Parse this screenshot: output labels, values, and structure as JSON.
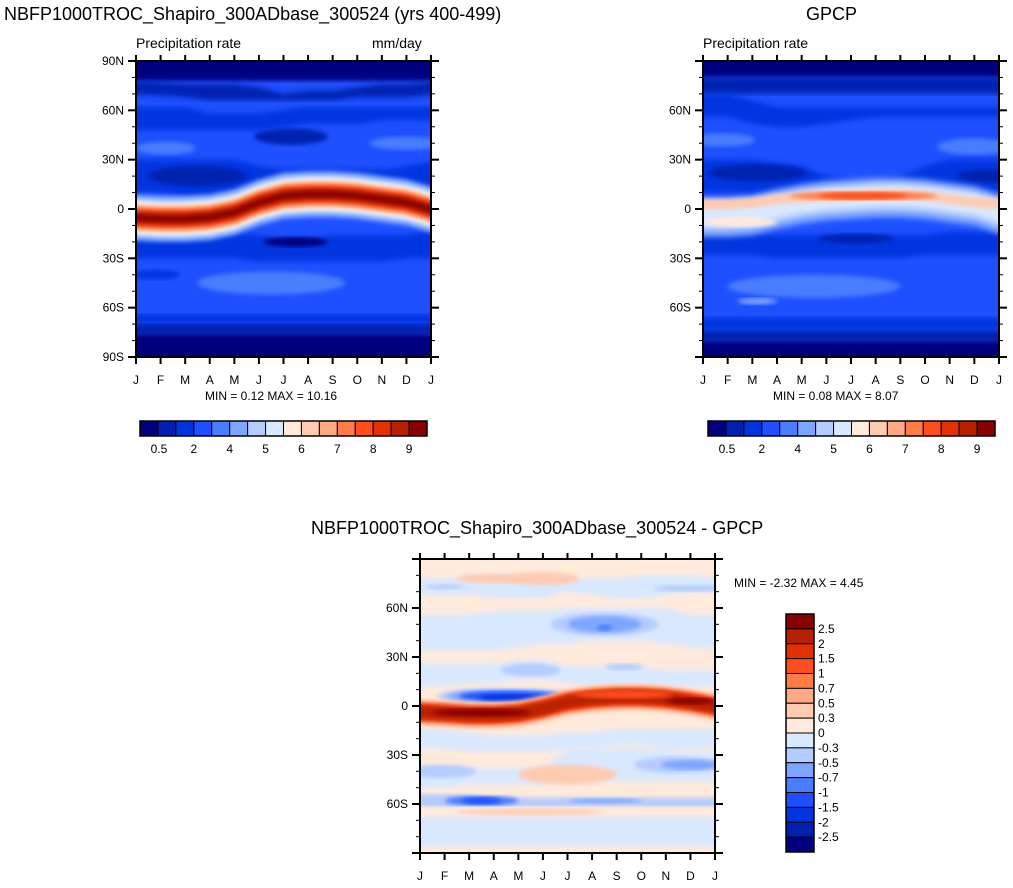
{
  "chart_data": [
    {
      "type": "heatmap",
      "id": "model",
      "title": "NBFP1000TROC_Shapiro_300ADbase_300524 (yrs 400-499)",
      "left_subtitle": "Precipitation rate",
      "right_subtitle": "mm/day",
      "xlabel": "",
      "ylabel": "",
      "x_tick_labels": [
        "J",
        "F",
        "M",
        "A",
        "M",
        "J",
        "J",
        "A",
        "S",
        "O",
        "N",
        "D",
        "J"
      ],
      "y_tick_labels": [
        "90N",
        "60N",
        "30N",
        "0",
        "30S",
        "60S",
        "90S"
      ],
      "y_tick_values": [
        90,
        60,
        30,
        0,
        -30,
        -60,
        -90
      ],
      "ylim": [
        -90,
        90
      ],
      "minmax_text": "MIN =   0.12 MAX =  10.16",
      "min": 0.12,
      "max": 10.16,
      "colorbar": {
        "orientation": "horizontal",
        "colors": [
          "#00007f",
          "#0020b0",
          "#0034e0",
          "#1e50ff",
          "#4a7dff",
          "#7ea5ff",
          "#b4ccff",
          "#d8e8ff",
          "#ffeadb",
          "#ffcbb0",
          "#ffaa85",
          "#ff7b48",
          "#ff4e1e",
          "#e23000",
          "#b72000",
          "#880000"
        ],
        "tick_labels": [
          "0.5",
          "2",
          "4",
          "5",
          "6",
          "7",
          "8",
          "9"
        ]
      },
      "features": {
        "itcz": "band of maximum precipitation near 5S in Jan-Apr shifting to ~10N in Jul-Oct",
        "itcz_path_lat": [
          -5,
          -6,
          -6,
          -5,
          -2,
          4,
          8,
          9,
          9,
          8,
          6,
          4,
          -2
        ]
      }
    },
    {
      "type": "heatmap",
      "id": "obs",
      "title": "GPCP",
      "left_subtitle": "Precipitation rate",
      "right_subtitle": "",
      "x_tick_labels": [
        "J",
        "F",
        "M",
        "A",
        "M",
        "J",
        "J",
        "A",
        "S",
        "O",
        "N",
        "D",
        "J"
      ],
      "y_tick_labels": [
        "60N",
        "30N",
        "0",
        "30S",
        "60S"
      ],
      "y_tick_values": [
        60,
        30,
        0,
        -30,
        -60
      ],
      "ylim": [
        -90,
        90
      ],
      "minmax_text": "MIN =   0.08 MAX =   8.07",
      "min": 0.08,
      "max": 8.07,
      "colorbar": {
        "orientation": "horizontal",
        "colors": [
          "#00007f",
          "#0020b0",
          "#0034e0",
          "#1e50ff",
          "#4a7dff",
          "#7ea5ff",
          "#b4ccff",
          "#d8e8ff",
          "#ffeadb",
          "#ffcbb0",
          "#ffaa85",
          "#ff7b48",
          "#ff4e1e",
          "#e23000",
          "#b72000",
          "#880000"
        ],
        "tick_labels": [
          "0.5",
          "2",
          "4",
          "5",
          "6",
          "7",
          "8",
          "9"
        ]
      },
      "features": {
        "itcz_path_lat": [
          -3,
          -3,
          -2,
          2,
          5,
          7,
          8,
          9,
          9,
          8,
          6,
          4,
          -3
        ]
      }
    },
    {
      "type": "heatmap",
      "id": "diff",
      "title": "NBFP1000TROC_Shapiro_300ADbase_300524 - GPCP",
      "x_tick_labels": [
        "J",
        "F",
        "M",
        "A",
        "M",
        "J",
        "J",
        "A",
        "S",
        "O",
        "N",
        "D",
        "J"
      ],
      "y_tick_labels": [
        "60N",
        "30N",
        "0",
        "30S",
        "60S"
      ],
      "y_tick_values": [
        60,
        30,
        0,
        -30,
        -60
      ],
      "ylim": [
        -90,
        90
      ],
      "minmax_text": "MIN =  -2.32 MAX =   4.45",
      "min": -2.32,
      "max": 4.45,
      "colorbar": {
        "orientation": "vertical",
        "colors_top_to_bottom": [
          "#880000",
          "#b72000",
          "#e23000",
          "#ff4e1e",
          "#ff7b48",
          "#ffaa85",
          "#ffcbb0",
          "#ffeadb",
          "#d8e8ff",
          "#b4ccff",
          "#7ea5ff",
          "#4a7dff",
          "#1e50ff",
          "#0034e0",
          "#0020b0",
          "#00007f"
        ],
        "tick_labels_top_to_bottom": [
          "2.5",
          "2",
          "1.5",
          "1",
          "0.7",
          "0.5",
          "0.3",
          "0",
          "-0.3",
          "-0.5",
          "-0.7",
          "-1",
          "-1.5",
          "-2",
          "-2.5"
        ]
      }
    }
  ]
}
